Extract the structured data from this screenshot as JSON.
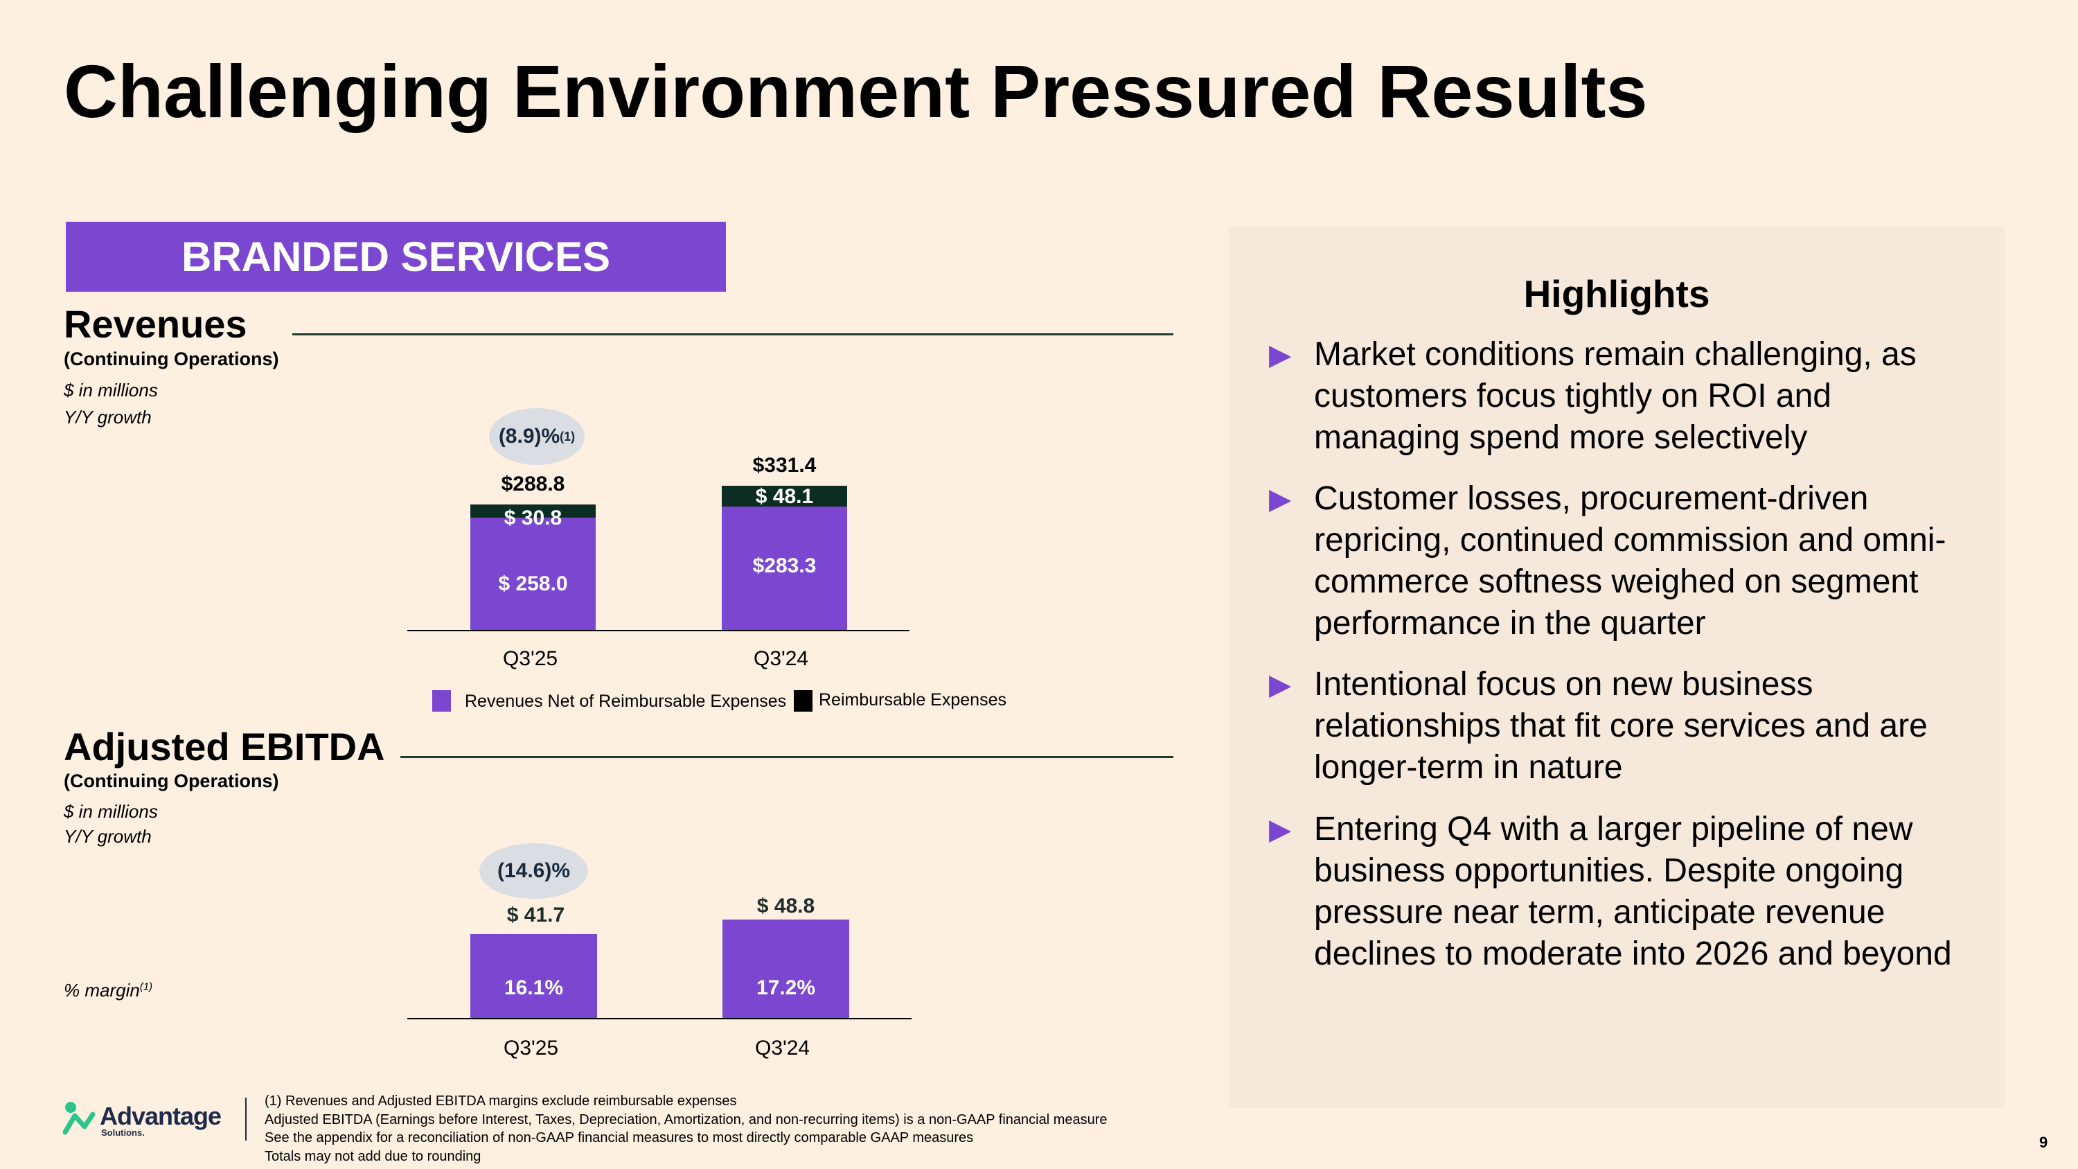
{
  "title": "Challenging Environment Pressured Results",
  "banner": "BRANDED SERVICES",
  "revenues": {
    "heading": "Revenues",
    "subheading": "(Continuing Operations)",
    "unit": "$ in millions",
    "growth_label": "Y/Y growth",
    "growth_value": "(8.9)%",
    "growth_note": "(1)"
  },
  "ebitda": {
    "heading": "Adjusted EBITDA",
    "subheading": "(Continuing Operations)",
    "unit": "$ in millions",
    "growth_label": "Y/Y growth",
    "growth_value": "(14.6)%",
    "margin_label": "% margin",
    "margin_note": "(1)"
  },
  "chart_data": [
    {
      "type": "bar",
      "stacked": true,
      "title": "Revenues",
      "categories": [
        "Q3'25",
        "Q3'24"
      ],
      "series": [
        {
          "name": "Revenues Net of Reimbursable Expenses",
          "values": [
            258.0,
            283.3
          ],
          "labels": [
            "$ 258.0",
            "$283.3"
          ],
          "color": "#7b47d1"
        },
        {
          "name": "Reimbursable Expenses",
          "values": [
            30.8,
            48.1
          ],
          "labels": [
            "$ 30.8",
            "$ 48.1"
          ],
          "color": "#0b2d22"
        }
      ],
      "totals": [
        "$288.8",
        "$331.4"
      ],
      "ylim": [
        0,
        331.4
      ]
    },
    {
      "type": "bar",
      "title": "Adjusted EBITDA",
      "categories": [
        "Q3'25",
        "Q3'24"
      ],
      "series": [
        {
          "name": "Adjusted EBITDA",
          "values": [
            41.7,
            48.8
          ],
          "labels": [
            "$ 41.7",
            "$ 48.8"
          ],
          "margins": [
            "16.1%",
            "17.2%"
          ],
          "color": "#7b47d1"
        }
      ],
      "ylim": [
        0,
        48.8
      ]
    }
  ],
  "legend": {
    "items": [
      {
        "label": "Revenues Net of Reimbursable Expenses",
        "color": "#7b47d1"
      },
      {
        "label": "Reimbursable Expenses",
        "color": "#000000"
      }
    ]
  },
  "highlights": {
    "title": "Highlights",
    "items": [
      "Market conditions remain challenging, as customers focus tightly on ROI and managing spend more selectively",
      "Customer losses, procurement-driven repricing, continued commission and omni-commerce softness weighed on segment performance in the quarter",
      "Intentional focus on new business relationships that fit core services and are longer-term in nature",
      "Entering Q4 with a larger pipeline of new business opportunities. Despite ongoing pressure near term, anticipate revenue declines to moderate into 2026 and beyond"
    ]
  },
  "footnotes": [
    "(1)  Revenues and Adjusted EBITDA margins exclude reimbursable expenses",
    "Adjusted EBITDA (Earnings before Interest, Taxes, Depreciation, Amortization, and non-recurring items) is a non-GAAP financial measure",
    "See the appendix for a reconciliation of non-GAAP financial measures to most directly comparable GAAP measures",
    "Totals may not add due to rounding"
  ],
  "logo": {
    "name": "Advantage",
    "sub": "Solutions."
  },
  "page_number": "9"
}
